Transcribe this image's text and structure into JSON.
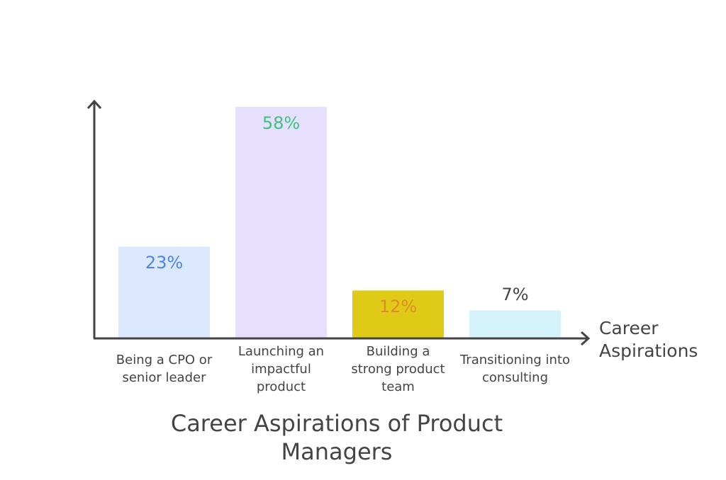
{
  "chart_data": {
    "type": "bar",
    "title": "Career Aspirations of Product Managers",
    "xlabel": "Career Aspirations",
    "ylabel": "",
    "ylim": [
      0,
      60
    ],
    "grid": false,
    "categories": [
      "Being a CPO or senior leader",
      "Launching an impactful product",
      "Building a strong product team",
      "Transitioning into consulting"
    ],
    "values": [
      23,
      58,
      12,
      7
    ],
    "data_labels": [
      "23%",
      "58%",
      "12%",
      "7%"
    ],
    "bar_colors": [
      "#dce8fd",
      "#e6dffd",
      "#dfcb17",
      "#d3f2fc"
    ],
    "label_colors": [
      "#4a86e8",
      "#3cc47c",
      "#e08a2c",
      "#444444"
    ],
    "label_positions": [
      "inside",
      "inside",
      "inside",
      "above"
    ]
  }
}
